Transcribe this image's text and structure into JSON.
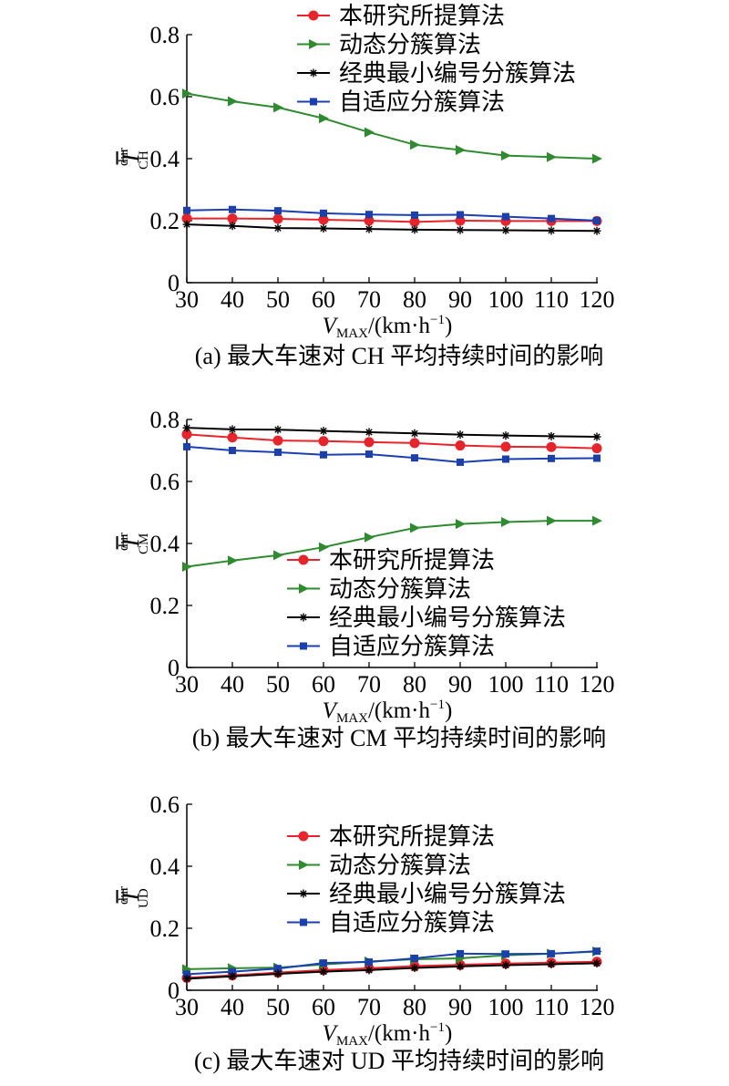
{
  "x_axis_label": {
    "var": "V",
    "sub": "MAX",
    "unit": "/(km·h",
    "sup": "−1",
    "close": ")"
  },
  "legend_labels": [
    "本研究所提算法",
    "动态分簇算法",
    "经典最小编号分簇算法",
    "自适应分簇算法"
  ],
  "series_styles": [
    {
      "color": "#e8232a",
      "marker": "circle"
    },
    {
      "color": "#2e8b2e",
      "marker": "triangle-right"
    },
    {
      "color": "#000000",
      "marker": "asterisk"
    },
    {
      "color": "#1a3fb0",
      "marker": "square"
    }
  ],
  "chart_data": [
    {
      "type": "line",
      "caption": "(a) 最大车速对 CH 平均持续时间的影响",
      "ylabel": {
        "main": "T",
        "sup": "dur",
        "sub": "CH"
      },
      "x": [
        30,
        40,
        50,
        60,
        70,
        80,
        90,
        100,
        110,
        120
      ],
      "xlim": [
        30,
        120
      ],
      "ylim": [
        0,
        0.8
      ],
      "yticks": [
        "0",
        "0.2",
        "0.4",
        "0.6",
        "0.8"
      ],
      "legend_position": "top",
      "series": [
        {
          "name": "本研究所提算法",
          "values": [
            0.207,
            0.207,
            0.206,
            0.203,
            0.2,
            0.196,
            0.2,
            0.199,
            0.199,
            0.199
          ]
        },
        {
          "name": "动态分簇算法",
          "values": [
            0.61,
            0.585,
            0.565,
            0.53,
            0.485,
            0.445,
            0.428,
            0.41,
            0.405,
            0.4
          ]
        },
        {
          "name": "经典最小编号分簇算法",
          "values": [
            0.188,
            0.183,
            0.176,
            0.175,
            0.173,
            0.171,
            0.17,
            0.169,
            0.168,
            0.167
          ]
        },
        {
          "name": "自适应分簇算法",
          "values": [
            0.233,
            0.236,
            0.232,
            0.224,
            0.22,
            0.218,
            0.219,
            0.213,
            0.207,
            0.2
          ]
        }
      ]
    },
    {
      "type": "line",
      "caption": "(b) 最大车速对 CM 平均持续时间的影响",
      "ylabel": {
        "main": "T",
        "sup": "dur",
        "sub": "CM"
      },
      "x": [
        30,
        40,
        50,
        60,
        70,
        80,
        90,
        100,
        110,
        120
      ],
      "xlim": [
        30,
        120
      ],
      "ylim": [
        0,
        0.8
      ],
      "yticks": [
        "0",
        "0.2",
        "0.4",
        "0.6",
        "0.8"
      ],
      "legend_position": "lower-right",
      "series": [
        {
          "name": "本研究所提算法",
          "values": [
            0.752,
            0.742,
            0.732,
            0.73,
            0.727,
            0.724,
            0.716,
            0.712,
            0.711,
            0.707
          ]
        },
        {
          "name": "动态分簇算法",
          "values": [
            0.325,
            0.345,
            0.362,
            0.388,
            0.42,
            0.45,
            0.463,
            0.469,
            0.473,
            0.473
          ]
        },
        {
          "name": "经典最小编号分簇算法",
          "values": [
            0.773,
            0.768,
            0.767,
            0.763,
            0.759,
            0.755,
            0.751,
            0.748,
            0.746,
            0.744
          ]
        },
        {
          "name": "自适应分簇算法",
          "values": [
            0.712,
            0.7,
            0.694,
            0.686,
            0.688,
            0.676,
            0.662,
            0.672,
            0.674,
            0.675
          ]
        }
      ]
    },
    {
      "type": "line",
      "caption": "(c) 最大车速对 UD 平均持续时间的影响",
      "ylabel": {
        "main": "T",
        "sup": "dur",
        "sub": "UD"
      },
      "x": [
        30,
        40,
        50,
        60,
        70,
        80,
        90,
        100,
        110,
        120
      ],
      "xlim": [
        30,
        120
      ],
      "ylim": [
        0,
        0.6
      ],
      "yticks": [
        "0",
        "0.2",
        "0.4",
        "0.6"
      ],
      "legend_position": "upper-right",
      "series": [
        {
          "name": "本研究所提算法",
          "values": [
            0.04,
            0.048,
            0.057,
            0.065,
            0.071,
            0.078,
            0.082,
            0.086,
            0.089,
            0.092
          ]
        },
        {
          "name": "动态分簇算法",
          "values": [
            0.068,
            0.071,
            0.073,
            0.083,
            0.093,
            0.1,
            0.103,
            0.113,
            0.118,
            0.125
          ]
        },
        {
          "name": "经典最小编号分簇算法",
          "values": [
            0.037,
            0.045,
            0.053,
            0.06,
            0.065,
            0.072,
            0.077,
            0.081,
            0.084,
            0.087
          ]
        },
        {
          "name": "自适应分簇算法",
          "values": [
            0.052,
            0.06,
            0.07,
            0.088,
            0.091,
            0.103,
            0.118,
            0.117,
            0.118,
            0.126
          ]
        }
      ]
    }
  ]
}
